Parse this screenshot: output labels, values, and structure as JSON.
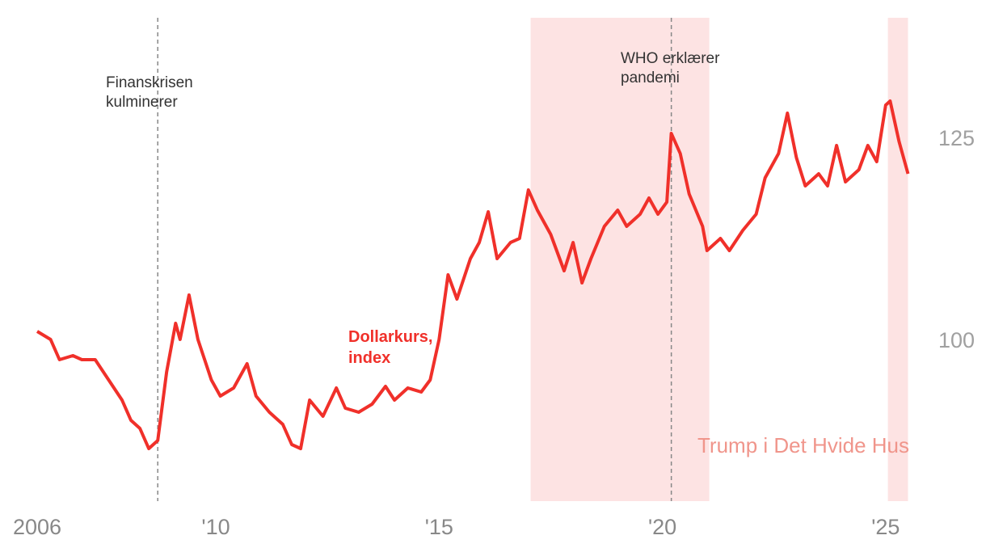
{
  "chart_data": {
    "type": "line",
    "x": [
      2006.0,
      2006.3,
      2006.5,
      2006.8,
      2007.0,
      2007.3,
      2007.6,
      2007.9,
      2008.1,
      2008.3,
      2008.5,
      2008.7,
      2008.9,
      2009.1,
      2009.2,
      2009.4,
      2009.6,
      2009.9,
      2010.1,
      2010.4,
      2010.7,
      2010.9,
      2011.2,
      2011.5,
      2011.7,
      2011.9,
      2012.1,
      2012.4,
      2012.7,
      2012.9,
      2013.2,
      2013.5,
      2013.8,
      2014.0,
      2014.3,
      2014.6,
      2014.8,
      2015.0,
      2015.2,
      2015.4,
      2015.7,
      2015.9,
      2016.1,
      2016.3,
      2016.6,
      2016.8,
      2017.0,
      2017.2,
      2017.5,
      2017.8,
      2018.0,
      2018.2,
      2018.4,
      2018.7,
      2019.0,
      2019.2,
      2019.5,
      2019.7,
      2019.9,
      2020.1,
      2020.2,
      2020.4,
      2020.6,
      2020.9,
      2021.0,
      2021.3,
      2021.5,
      2021.8,
      2022.1,
      2022.3,
      2022.6,
      2022.8,
      2023.0,
      2023.2,
      2023.5,
      2023.7,
      2023.9,
      2024.1,
      2024.4,
      2024.6,
      2024.8,
      2025.0,
      2025.1,
      2025.3,
      2025.5
    ],
    "series": [
      {
        "name": "Dollarkurs, index",
        "color": "#f0302a",
        "values": [
          101.3,
          100.3,
          97.8,
          98.3,
          97.8,
          97.8,
          95.3,
          92.8,
          90.3,
          89.3,
          86.8,
          87.8,
          96.3,
          102.3,
          100.3,
          105.8,
          100.3,
          95.3,
          93.3,
          94.3,
          97.3,
          93.3,
          91.3,
          89.8,
          87.3,
          86.8,
          92.8,
          90.8,
          94.3,
          91.8,
          91.3,
          92.3,
          94.5,
          92.8,
          94.3,
          93.8,
          95.3,
          100.3,
          108.3,
          105.3,
          110.3,
          112.3,
          116.1,
          110.3,
          112.3,
          112.8,
          118.8,
          116.3,
          113.3,
          108.8,
          112.3,
          107.3,
          110.3,
          114.3,
          116.3,
          114.3,
          115.8,
          117.8,
          115.8,
          117.3,
          125.8,
          123.3,
          118.3,
          114.3,
          111.3,
          112.8,
          111.3,
          113.8,
          115.8,
          120.3,
          123.3,
          128.3,
          122.8,
          119.3,
          120.8,
          119.3,
          124.3,
          119.8,
          121.3,
          124.3,
          122.3,
          129.3,
          129.8,
          124.8,
          120.8
        ]
      }
    ],
    "xlim": [
      2006.0,
      2025.5
    ],
    "xticks": [
      {
        "value": 2006,
        "label": "2006"
      },
      {
        "value": 2010,
        "label": "'10"
      },
      {
        "value": 2015,
        "label": "'15"
      },
      {
        "value": 2020,
        "label": "'20"
      },
      {
        "value": 2025,
        "label": "'25"
      }
    ],
    "ylim": [
      80.3,
      140.1
    ],
    "yticks": [
      100,
      125
    ],
    "shaded_ranges": {
      "label": "Trump i Det Hvide Hus",
      "color": "#fde3e3",
      "label_color": "#f0958b",
      "ranges": [
        [
          2017.05,
          2021.05
        ],
        [
          2025.05,
          2025.5
        ]
      ]
    },
    "annotations": [
      {
        "text": "Finanskrisen kulminerer",
        "x": 2008.7
      },
      {
        "text": "WHO erklærer pandemi",
        "x": 2020.2
      }
    ]
  }
}
